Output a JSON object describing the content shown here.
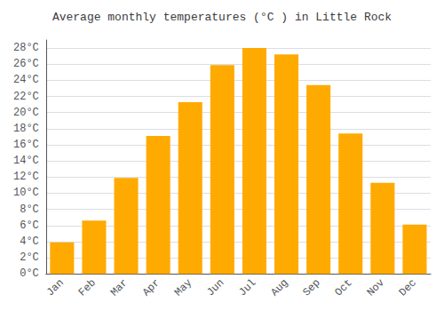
{
  "chart_data": {
    "type": "bar",
    "title": "Average monthly temperatures (°C ) in Little Rock",
    "categories": [
      "Jan",
      "Feb",
      "Mar",
      "Apr",
      "May",
      "Jun",
      "Jul",
      "Aug",
      "Sep",
      "Oct",
      "Nov",
      "Dec"
    ],
    "values": [
      3.9,
      6.6,
      11.9,
      17.1,
      21.3,
      25.9,
      28.0,
      27.2,
      23.4,
      17.4,
      11.3,
      6.1
    ],
    "color": "#FFAA00",
    "ylim": [
      0,
      29
    ],
    "yticks": [
      {
        "value": 0,
        "label": "0°C"
      },
      {
        "value": 2,
        "label": "2°C"
      },
      {
        "value": 4,
        "label": "4°C"
      },
      {
        "value": 6,
        "label": "6°C"
      },
      {
        "value": 8,
        "label": "8°C"
      },
      {
        "value": 10,
        "label": "10°C"
      },
      {
        "value": 12,
        "label": "12°C"
      },
      {
        "value": 14,
        "label": "14°C"
      },
      {
        "value": 16,
        "label": "16°C"
      },
      {
        "value": 18,
        "label": "18°C"
      },
      {
        "value": 20,
        "label": "20°C"
      },
      {
        "value": 22,
        "label": "22°C"
      },
      {
        "value": 24,
        "label": "24°C"
      },
      {
        "value": 26,
        "label": "26°C"
      },
      {
        "value": 28,
        "label": "28°C"
      }
    ],
    "grid": true
  }
}
